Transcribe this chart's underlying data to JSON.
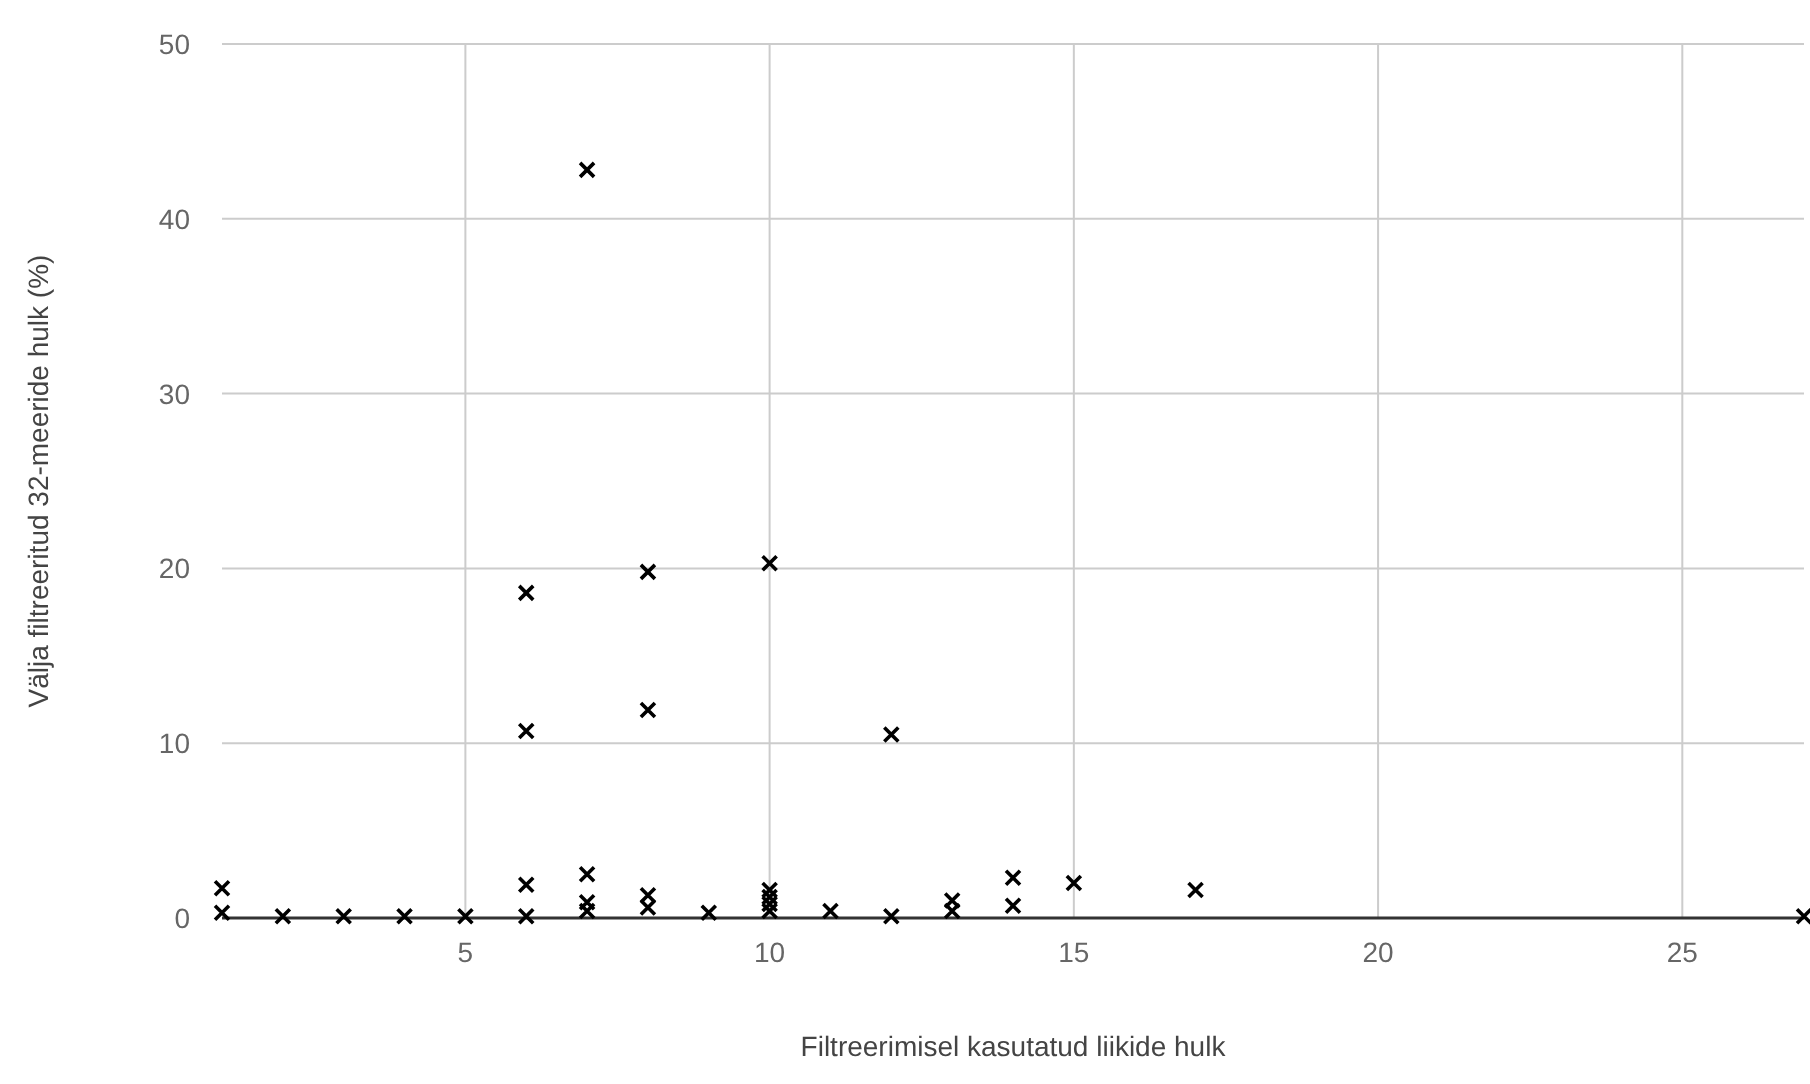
{
  "chart_data": {
    "type": "scatter",
    "xlabel": "Filtreerimisel kasutatud liikide hulk",
    "ylabel": "Välja filtreeritud 32-meeride hulk (%)",
    "series": [
      {
        "color": "#000000",
        "x": [
          1,
          1,
          2,
          3,
          4,
          5,
          6,
          6,
          6,
          6,
          7,
          7,
          7,
          7,
          8,
          8,
          8,
          8,
          9,
          10,
          10,
          10,
          10,
          10,
          11,
          12,
          12,
          13,
          13,
          14,
          14,
          15,
          17,
          27
        ],
        "values": [
          1.7,
          0.3,
          0.1,
          0.1,
          0.1,
          0.1,
          18.6,
          10.7,
          1.9,
          0.1,
          42.8,
          2.5,
          0.9,
          0.4,
          19.8,
          11.9,
          1.3,
          0.6,
          0.3,
          20.3,
          1.6,
          1.2,
          0.8,
          0.4,
          0.4,
          10.5,
          0.1,
          1.0,
          0.4,
          2.3,
          0.7,
          2.0,
          1.6,
          0.1
        ]
      }
    ],
    "xlim": [
      1,
      27
    ],
    "xticks": [
      5,
      10,
      15,
      20,
      25
    ],
    "ylim": [
      0,
      50
    ],
    "yticks": [
      0,
      10,
      20,
      30,
      40,
      50
    ],
    "grid": true,
    "marker": "cross"
  }
}
